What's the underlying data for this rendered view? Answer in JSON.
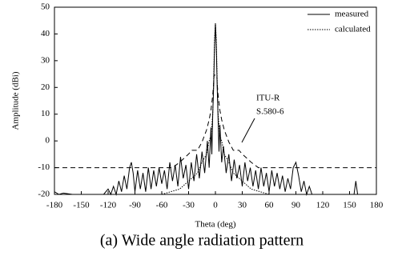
{
  "chart_data": {
    "type": "line",
    "xlabel": "Theta (deg)",
    "ylabel": "Amplitude (dBi)",
    "caption": "(a) Wide  angle radiation pattern",
    "xlim": [
      -180,
      180
    ],
    "xticks": [
      -180,
      -150,
      -120,
      -90,
      -60,
      -30,
      0,
      30,
      60,
      90,
      120,
      150,
      180
    ],
    "ylim": [
      -20,
      50
    ],
    "yticks": [
      -20,
      -10,
      0,
      10,
      20,
      30,
      40,
      50
    ],
    "legend": "top-right",
    "annotation_lines": [
      "ITU-R",
      "S.580-6"
    ],
    "series": [
      {
        "name": "measured",
        "color": "#000000",
        "style": "solid",
        "x": [
          -180,
          -175,
          -170,
          -160,
          -150,
          -140,
          -130,
          -125,
          -120,
          -117,
          -114,
          -111,
          -108,
          -105,
          -102,
          -99,
          -96,
          -94,
          -92,
          -90,
          -87,
          -84,
          -81,
          -78,
          -75,
          -72,
          -69,
          -66,
          -63,
          -60,
          -57,
          -54,
          -51,
          -48,
          -45,
          -42,
          -39,
          -36,
          -33,
          -30,
          -27,
          -24,
          -21,
          -18,
          -15,
          -12,
          -9,
          -7,
          -5,
          -4,
          -3,
          -2,
          -1,
          0,
          1,
          2,
          3,
          4,
          5,
          7,
          9,
          12,
          15,
          18,
          21,
          24,
          27,
          30,
          33,
          36,
          39,
          42,
          45,
          48,
          51,
          54,
          57,
          60,
          63,
          66,
          69,
          72,
          75,
          78,
          81,
          84,
          87,
          90,
          93,
          96,
          99,
          102,
          105,
          108,
          110,
          120,
          130,
          140,
          150,
          155,
          157,
          159,
          170,
          180
        ],
        "values": [
          -19,
          -20,
          -19.5,
          -20,
          -20,
          -20,
          -20,
          -20,
          -18,
          -20,
          -17,
          -20,
          -15,
          -19,
          -13,
          -18,
          -10,
          -8,
          -12,
          -19,
          -11,
          -18,
          -12,
          -19,
          -10,
          -18,
          -11,
          -17,
          -10,
          -16,
          -11,
          -18,
          -8,
          -15,
          -9,
          -17,
          -6,
          -14,
          -9,
          -18,
          -8,
          -15,
          -5,
          -14,
          -4,
          -12,
          0,
          -10,
          5,
          -5,
          10,
          20,
          35,
          44,
          35,
          20,
          8,
          -4,
          6,
          -8,
          -2,
          -12,
          -5,
          -15,
          -7,
          -14,
          -9,
          -17,
          -8,
          -15,
          -10,
          -17,
          -11,
          -18,
          -10,
          -17,
          -12,
          -19,
          -11,
          -17,
          -12,
          -18,
          -13,
          -19,
          -14,
          -18,
          -10,
          -8,
          -13,
          -19,
          -15,
          -20,
          -17,
          -20,
          -20,
          -20,
          -20,
          -20,
          -20,
          -20,
          -15,
          -20,
          -20,
          -20
        ]
      },
      {
        "name": "calculated",
        "color": "#000000",
        "style": "dotted",
        "x": [
          -60,
          -40,
          -30,
          -20,
          -15,
          -10,
          -7,
          -5,
          -3,
          -2,
          -1,
          0,
          1,
          2,
          3,
          5,
          7,
          10,
          15,
          20,
          30,
          40,
          60
        ],
        "values": [
          -20,
          -18,
          -15,
          -12,
          -8,
          -5,
          0,
          2,
          10,
          22,
          38,
          44,
          38,
          22,
          10,
          2,
          0,
          -5,
          -8,
          -12,
          -15,
          -18,
          -20
        ]
      },
      {
        "color": "#000000",
        "style": "dashed",
        "x": [
          -180,
          -48,
          -40,
          -30,
          -26.3,
          -20,
          -15,
          -10,
          -7,
          -5,
          -3,
          -2,
          -1.5,
          1.5,
          2,
          3,
          5,
          7,
          10,
          15,
          20,
          26.3,
          30,
          40,
          48,
          180
        ],
        "values": [
          -10,
          -10,
          -8,
          -4.9,
          -3.5,
          -3.5,
          -0.4,
          4,
          7.9,
          11.5,
          17.1,
          21.5,
          24.6,
          24.6,
          21.5,
          17.1,
          11.5,
          7.9,
          4,
          -0.4,
          -3.5,
          -3.5,
          -4.9,
          -8,
          -10,
          -10
        ]
      }
    ]
  }
}
